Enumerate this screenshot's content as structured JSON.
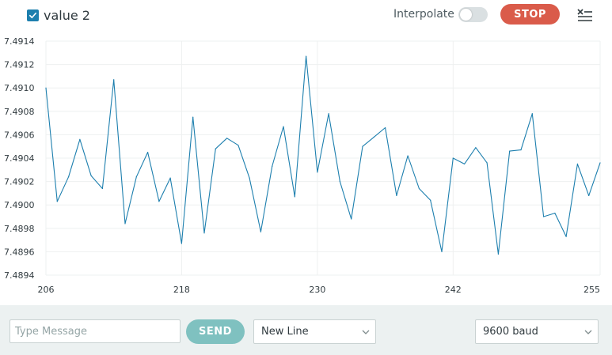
{
  "series": {
    "label": "value 2",
    "checked": true,
    "color": "#1d7fae"
  },
  "toolbar": {
    "interpolate_label": "Interpolate",
    "interpolate_on": false,
    "stop_label": "STOP",
    "stop_color": "#da5b4a",
    "clear_icon": "clear-list-icon"
  },
  "message": {
    "placeholder": "Type Message",
    "value": ""
  },
  "send": {
    "label": "SEND",
    "color": "#7fc1c0"
  },
  "line_ending": {
    "selected": "New Line"
  },
  "baud": {
    "selected": "9600 baud"
  },
  "chart_data": {
    "type": "line",
    "x": [
      206,
      207,
      208,
      209,
      210,
      211,
      212,
      213,
      214,
      215,
      216,
      217,
      218,
      219,
      220,
      221,
      222,
      223,
      224,
      225,
      226,
      227,
      228,
      229,
      230,
      231,
      232,
      233,
      234,
      235,
      236,
      237,
      238,
      239,
      240,
      241,
      242,
      243,
      244,
      245,
      246,
      247,
      248,
      249,
      250,
      251,
      252,
      253,
      254,
      255
    ],
    "series": [
      {
        "name": "value 2",
        "values": [
          7.491,
          7.49003,
          7.49024,
          7.49056,
          7.49025,
          7.49014,
          7.49107,
          7.48984,
          7.49024,
          7.49045,
          7.49003,
          7.49023,
          7.48967,
          7.49075,
          7.48976,
          7.49048,
          7.49057,
          7.49051,
          7.49023,
          7.48977,
          7.49033,
          7.49067,
          7.49007,
          7.49127,
          7.49028,
          7.49078,
          7.4902,
          7.48988,
          7.4905,
          7.49058,
          7.49066,
          7.49008,
          7.49042,
          7.49014,
          7.49004,
          7.4896,
          7.4904,
          7.49035,
          7.49049,
          7.49036,
          7.48958,
          7.49046,
          7.49047,
          7.49078,
          7.4899,
          7.48993,
          7.48973,
          7.49035,
          7.49008,
          7.49036
        ]
      }
    ],
    "xticks": [
      "206",
      "218",
      "230",
      "242",
      "255"
    ],
    "yticks": [
      "7.4914",
      "7.4912",
      "7.4910",
      "7.4908",
      "7.4906",
      "7.4904",
      "7.4902",
      "7.4900",
      "7.4898",
      "7.4896",
      "7.4894"
    ],
    "xlim": [
      206,
      255
    ],
    "ylim": [
      7.4894,
      7.4914
    ],
    "grid": true
  }
}
